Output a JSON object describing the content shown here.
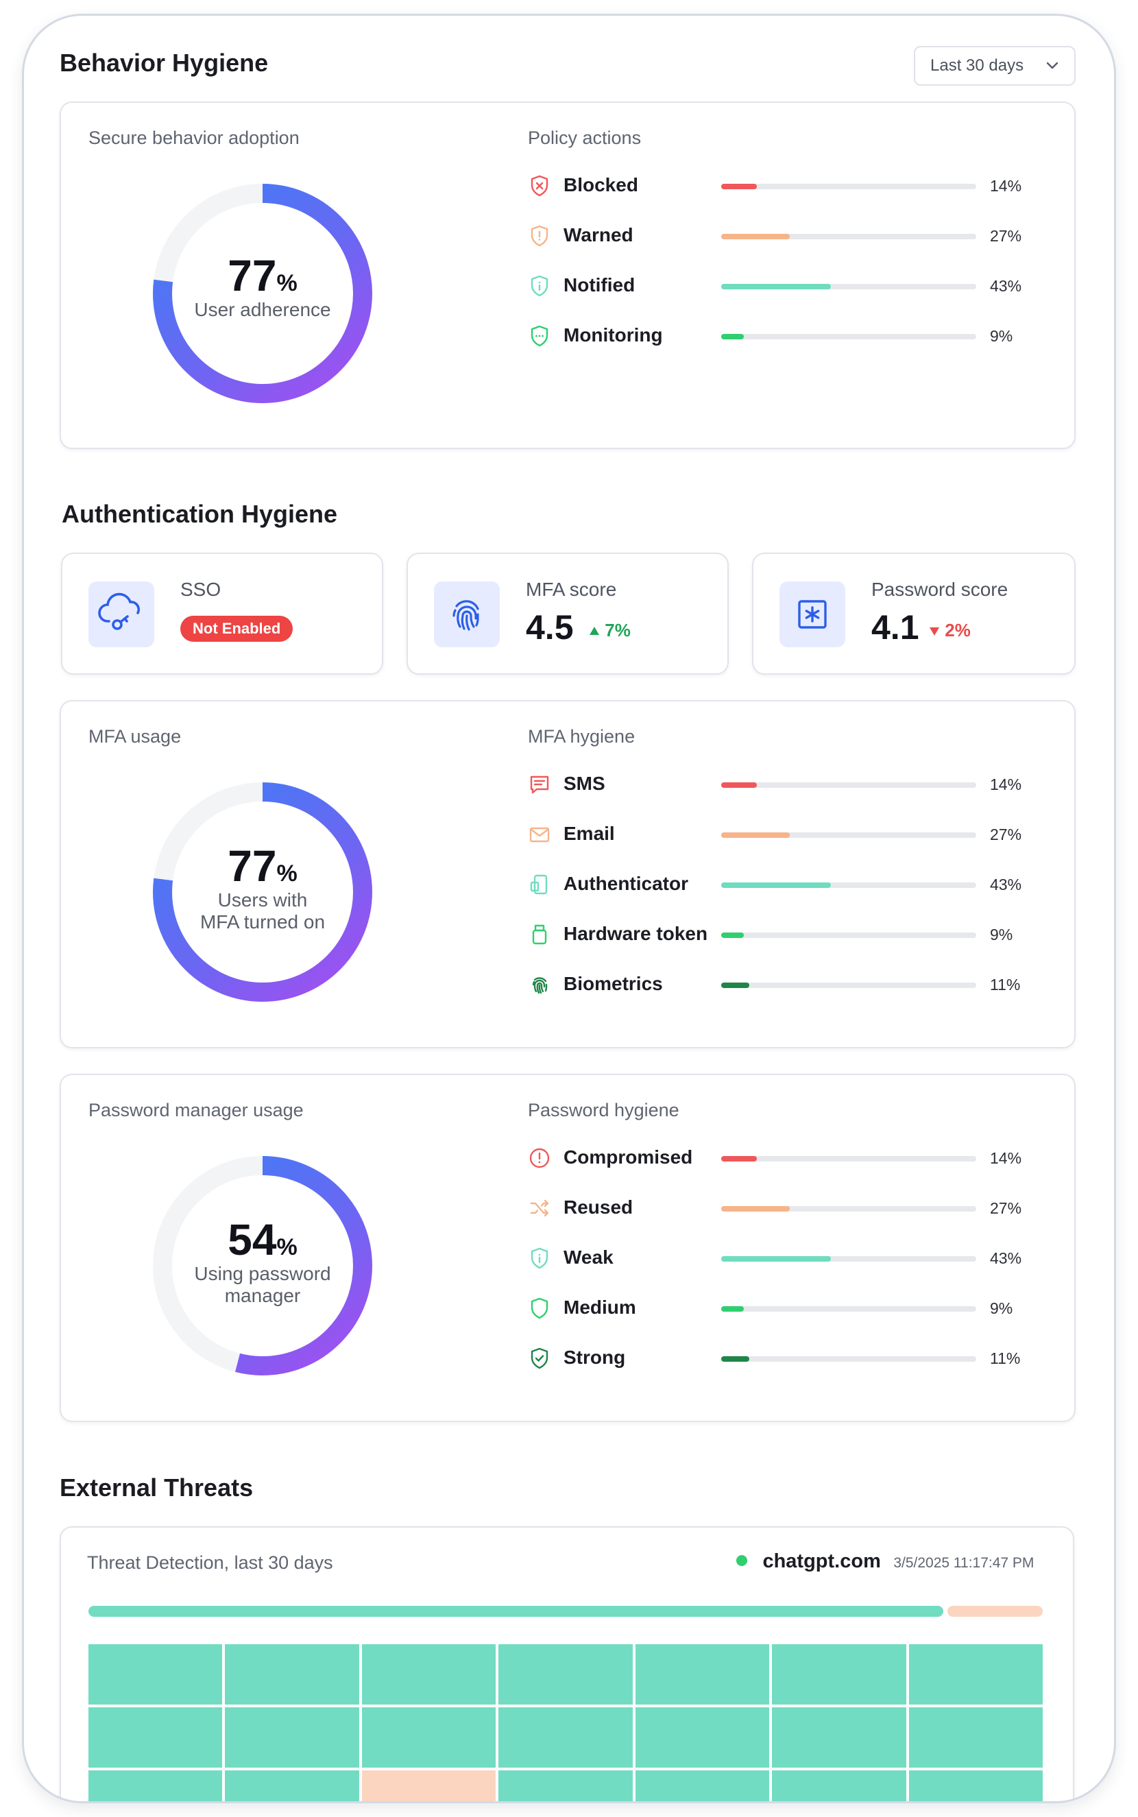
{
  "behavior": {
    "title": "Behavior Hygiene",
    "range": "Last 30 days",
    "adoption": {
      "label": "Secure behavior adoption",
      "value": "77",
      "unit": "%",
      "sub": "User adherence",
      "fraction": 0.77
    },
    "policy": {
      "label": "Policy actions",
      "items": [
        {
          "name": "Blocked",
          "pct": "14%",
          "value": 14,
          "color": "#f0575a",
          "icon": "shield-x-icon"
        },
        {
          "name": "Warned",
          "pct": "27%",
          "value": 27,
          "color": "#f6b48a",
          "icon": "shield-alert-icon"
        },
        {
          "name": "Notified",
          "pct": "43%",
          "value": 43,
          "color": "#6fdcbf",
          "icon": "shield-info-icon"
        },
        {
          "name": "Monitoring",
          "pct": "9%",
          "value": 9,
          "color": "#2fcf6f",
          "icon": "shield-dots-icon"
        }
      ]
    }
  },
  "auth": {
    "title": "Authentication Hygiene",
    "sso": {
      "label": "SSO",
      "status": "Not Enabled",
      "icon": "cloud-key-icon"
    },
    "mfa_score": {
      "label": "MFA score",
      "value": "4.5",
      "delta": "7%",
      "direction": "up",
      "color": "#22a55a",
      "icon": "fingerprint-icon"
    },
    "password_score": {
      "label": "Password score",
      "value": "4.1",
      "delta": "2%",
      "direction": "down",
      "color": "#ec4a4a",
      "icon": "asterisk-box-icon"
    },
    "mfa_usage": {
      "label": "MFA usage",
      "value": "77",
      "unit": "%",
      "sub1": "Users with",
      "sub2": "MFA turned on",
      "fraction": 0.77
    },
    "mfa_hygiene": {
      "label": "MFA hygiene",
      "items": [
        {
          "name": "SMS",
          "pct": "14%",
          "value": 14,
          "color": "#f0575a",
          "icon": "message-icon"
        },
        {
          "name": "Email",
          "pct": "27%",
          "value": 27,
          "color": "#f6b48a",
          "icon": "mail-icon"
        },
        {
          "name": "Authenticator",
          "pct": "43%",
          "value": 43,
          "color": "#6fdcbf",
          "icon": "authenticator-icon"
        },
        {
          "name": "Hardware token",
          "pct": "9%",
          "value": 9,
          "color": "#2fcf6f",
          "icon": "usb-token-icon"
        },
        {
          "name": "Biometrics",
          "pct": "11%",
          "value": 11,
          "color": "#1f8548",
          "icon": "fingerprint-icon"
        }
      ]
    },
    "pm_usage": {
      "label": "Password manager usage",
      "value": "54",
      "unit": "%",
      "sub1": "Using password",
      "sub2": "manager",
      "fraction": 0.54
    },
    "pw_hygiene": {
      "label": "Password hygiene",
      "items": [
        {
          "name": "Compromised",
          "pct": "14%",
          "value": 14,
          "color": "#f0575a",
          "icon": "alert-circle-icon"
        },
        {
          "name": "Reused",
          "pct": "27%",
          "value": 27,
          "color": "#f6b48a",
          "icon": "reused-icon"
        },
        {
          "name": "Weak",
          "pct": "43%",
          "value": 43,
          "color": "#6fdcbf",
          "icon": "shield-info-icon"
        },
        {
          "name": "Medium",
          "pct": "9%",
          "value": 9,
          "color": "#2fcf6f",
          "icon": "shield-icon"
        },
        {
          "name": "Strong",
          "pct": "11%",
          "value": 11,
          "color": "#1f8548",
          "icon": "shield-check-icon"
        }
      ]
    }
  },
  "threats": {
    "title": "External Threats",
    "label": "Threat Detection, last 30 days",
    "site": "chatgpt.com",
    "timestamp": "3/5/2025 11:17:47 PM",
    "status_color": "#2fcf6f",
    "safe_color": "#72dcc2",
    "flag_color": "#fbd5c0",
    "safe_fraction": 0.898,
    "grid": [
      [
        "safe",
        "safe",
        "safe",
        "safe",
        "safe",
        "safe",
        "safe"
      ],
      [
        "safe",
        "safe",
        "safe",
        "safe",
        "safe",
        "safe",
        "safe"
      ],
      [
        "safe",
        "safe",
        "flag",
        "safe",
        "safe",
        "safe",
        "safe"
      ]
    ]
  }
}
